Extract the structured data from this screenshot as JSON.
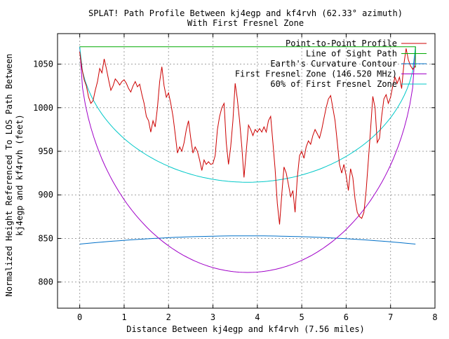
{
  "chart_data": {
    "type": "line",
    "title_line1": "SPLAT! Path Profile Between kj4egp and kf4rvh (62.33° azimuth)",
    "title_line2": "With First Fresnel Zone",
    "xlabel": "Distance Between kj4egp and kf4rvh (7.56 miles)",
    "ylabel_line1": "Normalized Height Referenced To LOS Path Between",
    "ylabel_line2": "kj4egp and kf4rvh (feet)",
    "xlim": [
      -0.5,
      8
    ],
    "ylim": [
      770,
      1085
    ],
    "x_ticks": [
      "0",
      "1",
      "2",
      "3",
      "4",
      "5",
      "6",
      "7",
      "8"
    ],
    "y_ticks": [
      "800",
      "850",
      "900",
      "950",
      "1000",
      "1050"
    ],
    "grid": true,
    "legend_position": "top-right",
    "series": [
      {
        "name": "Point-to-Point Profile",
        "color": "#cc0000",
        "points": [
          [
            0.0,
            1064
          ],
          [
            0.05,
            1045
          ],
          [
            0.1,
            1032
          ],
          [
            0.15,
            1025
          ],
          [
            0.2,
            1012
          ],
          [
            0.25,
            1005
          ],
          [
            0.3,
            1008
          ],
          [
            0.35,
            1020
          ],
          [
            0.4,
            1030
          ],
          [
            0.45,
            1045
          ],
          [
            0.5,
            1040
          ],
          [
            0.55,
            1056
          ],
          [
            0.6,
            1045
          ],
          [
            0.65,
            1032
          ],
          [
            0.7,
            1020
          ],
          [
            0.75,
            1025
          ],
          [
            0.8,
            1033
          ],
          [
            0.85,
            1030
          ],
          [
            0.9,
            1026
          ],
          [
            0.95,
            1030
          ],
          [
            1.0,
            1032
          ],
          [
            1.05,
            1028
          ],
          [
            1.1,
            1022
          ],
          [
            1.15,
            1018
          ],
          [
            1.2,
            1025
          ],
          [
            1.25,
            1030
          ],
          [
            1.3,
            1024
          ],
          [
            1.35,
            1027
          ],
          [
            1.4,
            1015
          ],
          [
            1.45,
            1005
          ],
          [
            1.5,
            990
          ],
          [
            1.55,
            985
          ],
          [
            1.6,
            972
          ],
          [
            1.65,
            985
          ],
          [
            1.7,
            978
          ],
          [
            1.75,
            1000
          ],
          [
            1.8,
            1030
          ],
          [
            1.85,
            1047
          ],
          [
            1.9,
            1025
          ],
          [
            1.95,
            1012
          ],
          [
            2.0,
            1017
          ],
          [
            2.05,
            1005
          ],
          [
            2.1,
            990
          ],
          [
            2.15,
            970
          ],
          [
            2.2,
            948
          ],
          [
            2.25,
            955
          ],
          [
            2.3,
            950
          ],
          [
            2.35,
            960
          ],
          [
            2.4,
            975
          ],
          [
            2.45,
            985
          ],
          [
            2.5,
            965
          ],
          [
            2.55,
            948
          ],
          [
            2.6,
            955
          ],
          [
            2.65,
            950
          ],
          [
            2.7,
            940
          ],
          [
            2.75,
            928
          ],
          [
            2.8,
            940
          ],
          [
            2.85,
            935
          ],
          [
            2.9,
            938
          ],
          [
            2.95,
            935
          ],
          [
            3.0,
            936
          ],
          [
            3.05,
            945
          ],
          [
            3.1,
            975
          ],
          [
            3.15,
            990
          ],
          [
            3.2,
            1000
          ],
          [
            3.25,
            1005
          ],
          [
            3.3,
            960
          ],
          [
            3.35,
            935
          ],
          [
            3.4,
            955
          ],
          [
            3.45,
            985
          ],
          [
            3.5,
            1028
          ],
          [
            3.55,
            1010
          ],
          [
            3.6,
            985
          ],
          [
            3.65,
            955
          ],
          [
            3.7,
            920
          ],
          [
            3.75,
            950
          ],
          [
            3.8,
            980
          ],
          [
            3.85,
            975
          ],
          [
            3.9,
            968
          ],
          [
            3.95,
            975
          ],
          [
            4.0,
            972
          ],
          [
            4.05,
            976
          ],
          [
            4.1,
            972
          ],
          [
            4.15,
            978
          ],
          [
            4.2,
            972
          ],
          [
            4.25,
            985
          ],
          [
            4.3,
            990
          ],
          [
            4.35,
            960
          ],
          [
            4.4,
            930
          ],
          [
            4.45,
            890
          ],
          [
            4.5,
            866
          ],
          [
            4.55,
            900
          ],
          [
            4.6,
            932
          ],
          [
            4.65,
            925
          ],
          [
            4.7,
            912
          ],
          [
            4.75,
            898
          ],
          [
            4.8,
            905
          ],
          [
            4.85,
            880
          ],
          [
            4.9,
            920
          ],
          [
            4.95,
            945
          ],
          [
            5.0,
            950
          ],
          [
            5.05,
            942
          ],
          [
            5.1,
            955
          ],
          [
            5.15,
            962
          ],
          [
            5.2,
            958
          ],
          [
            5.25,
            968
          ],
          [
            5.3,
            975
          ],
          [
            5.35,
            970
          ],
          [
            5.4,
            965
          ],
          [
            5.45,
            975
          ],
          [
            5.5,
            988
          ],
          [
            5.55,
            1000
          ],
          [
            5.6,
            1010
          ],
          [
            5.65,
            1014
          ],
          [
            5.7,
            1000
          ],
          [
            5.75,
            985
          ],
          [
            5.8,
            960
          ],
          [
            5.85,
            935
          ],
          [
            5.9,
            925
          ],
          [
            5.95,
            935
          ],
          [
            6.0,
            922
          ],
          [
            6.05,
            905
          ],
          [
            6.1,
            930
          ],
          [
            6.15,
            920
          ],
          [
            6.2,
            895
          ],
          [
            6.25,
            880
          ],
          [
            6.3,
            875
          ],
          [
            6.35,
            873
          ],
          [
            6.4,
            880
          ],
          [
            6.45,
            905
          ],
          [
            6.5,
            940
          ],
          [
            6.55,
            975
          ],
          [
            6.6,
            1013
          ],
          [
            6.65,
            1000
          ],
          [
            6.7,
            960
          ],
          [
            6.75,
            965
          ],
          [
            6.8,
            990
          ],
          [
            6.85,
            1010
          ],
          [
            6.9,
            1015
          ],
          [
            6.95,
            1005
          ],
          [
            7.0,
            1012
          ],
          [
            7.05,
            1025
          ],
          [
            7.1,
            1035
          ],
          [
            7.15,
            1028
          ],
          [
            7.2,
            1035
          ],
          [
            7.25,
            1022
          ],
          [
            7.3,
            1050
          ],
          [
            7.35,
            1068
          ],
          [
            7.4,
            1055
          ],
          [
            7.45,
            1048
          ],
          [
            7.5,
            1044
          ],
          [
            7.56,
            1048
          ]
        ]
      },
      {
        "name": "Line of Sight Path",
        "color": "#00aa00",
        "points": [
          [
            0,
            1070
          ],
          [
            7.56,
            1070
          ],
          [
            7.56,
            1046
          ]
        ]
      },
      {
        "name": "Earth's Curvature Contour",
        "color": "#0070c8",
        "start": 843.5,
        "end": 843.5,
        "peak": 853
      },
      {
        "name": "First Fresnel Zone (146.520 MHz)",
        "color": "#a000c8",
        "floor": 811,
        "edge": 1070
      },
      {
        "name": "60% of First Fresnel Zone",
        "color": "#00c8c8",
        "floor": 914.5,
        "edge": 1070
      }
    ]
  }
}
